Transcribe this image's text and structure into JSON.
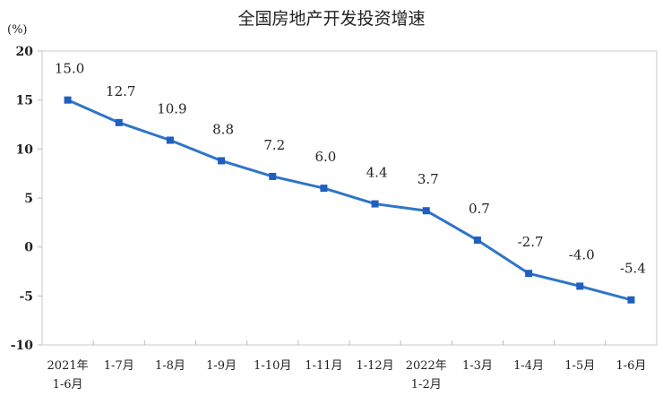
{
  "chart_data": {
    "type": "line",
    "title": "全国房地产开发投资增速",
    "ylabel": "(%)",
    "ylim": [
      -10,
      20
    ],
    "yticks": [
      20,
      15,
      10,
      5,
      0,
      -5,
      -10
    ],
    "grid": false,
    "categories": [
      [
        "2021年",
        "1-6月"
      ],
      [
        "1-7月"
      ],
      [
        "1-8月"
      ],
      [
        "1-9月"
      ],
      [
        "1-10月"
      ],
      [
        "1-11月"
      ],
      [
        "1-12月"
      ],
      [
        "2022年",
        "1-2月"
      ],
      [
        "1-3月"
      ],
      [
        "1-4月"
      ],
      [
        "1-5月"
      ],
      [
        "1-6月"
      ]
    ],
    "values": [
      15.0,
      12.7,
      10.9,
      8.8,
      7.2,
      6.0,
      4.4,
      3.7,
      0.7,
      -2.7,
      -4.0,
      -5.4
    ],
    "data_labels": [
      "15.0",
      "12.7",
      "10.9",
      "8.8",
      "7.2",
      "6.0",
      "4.4",
      "3.7",
      "0.7",
      "-2.7",
      "-4.0",
      "-5.4"
    ],
    "line_color": "#2e75c9"
  }
}
